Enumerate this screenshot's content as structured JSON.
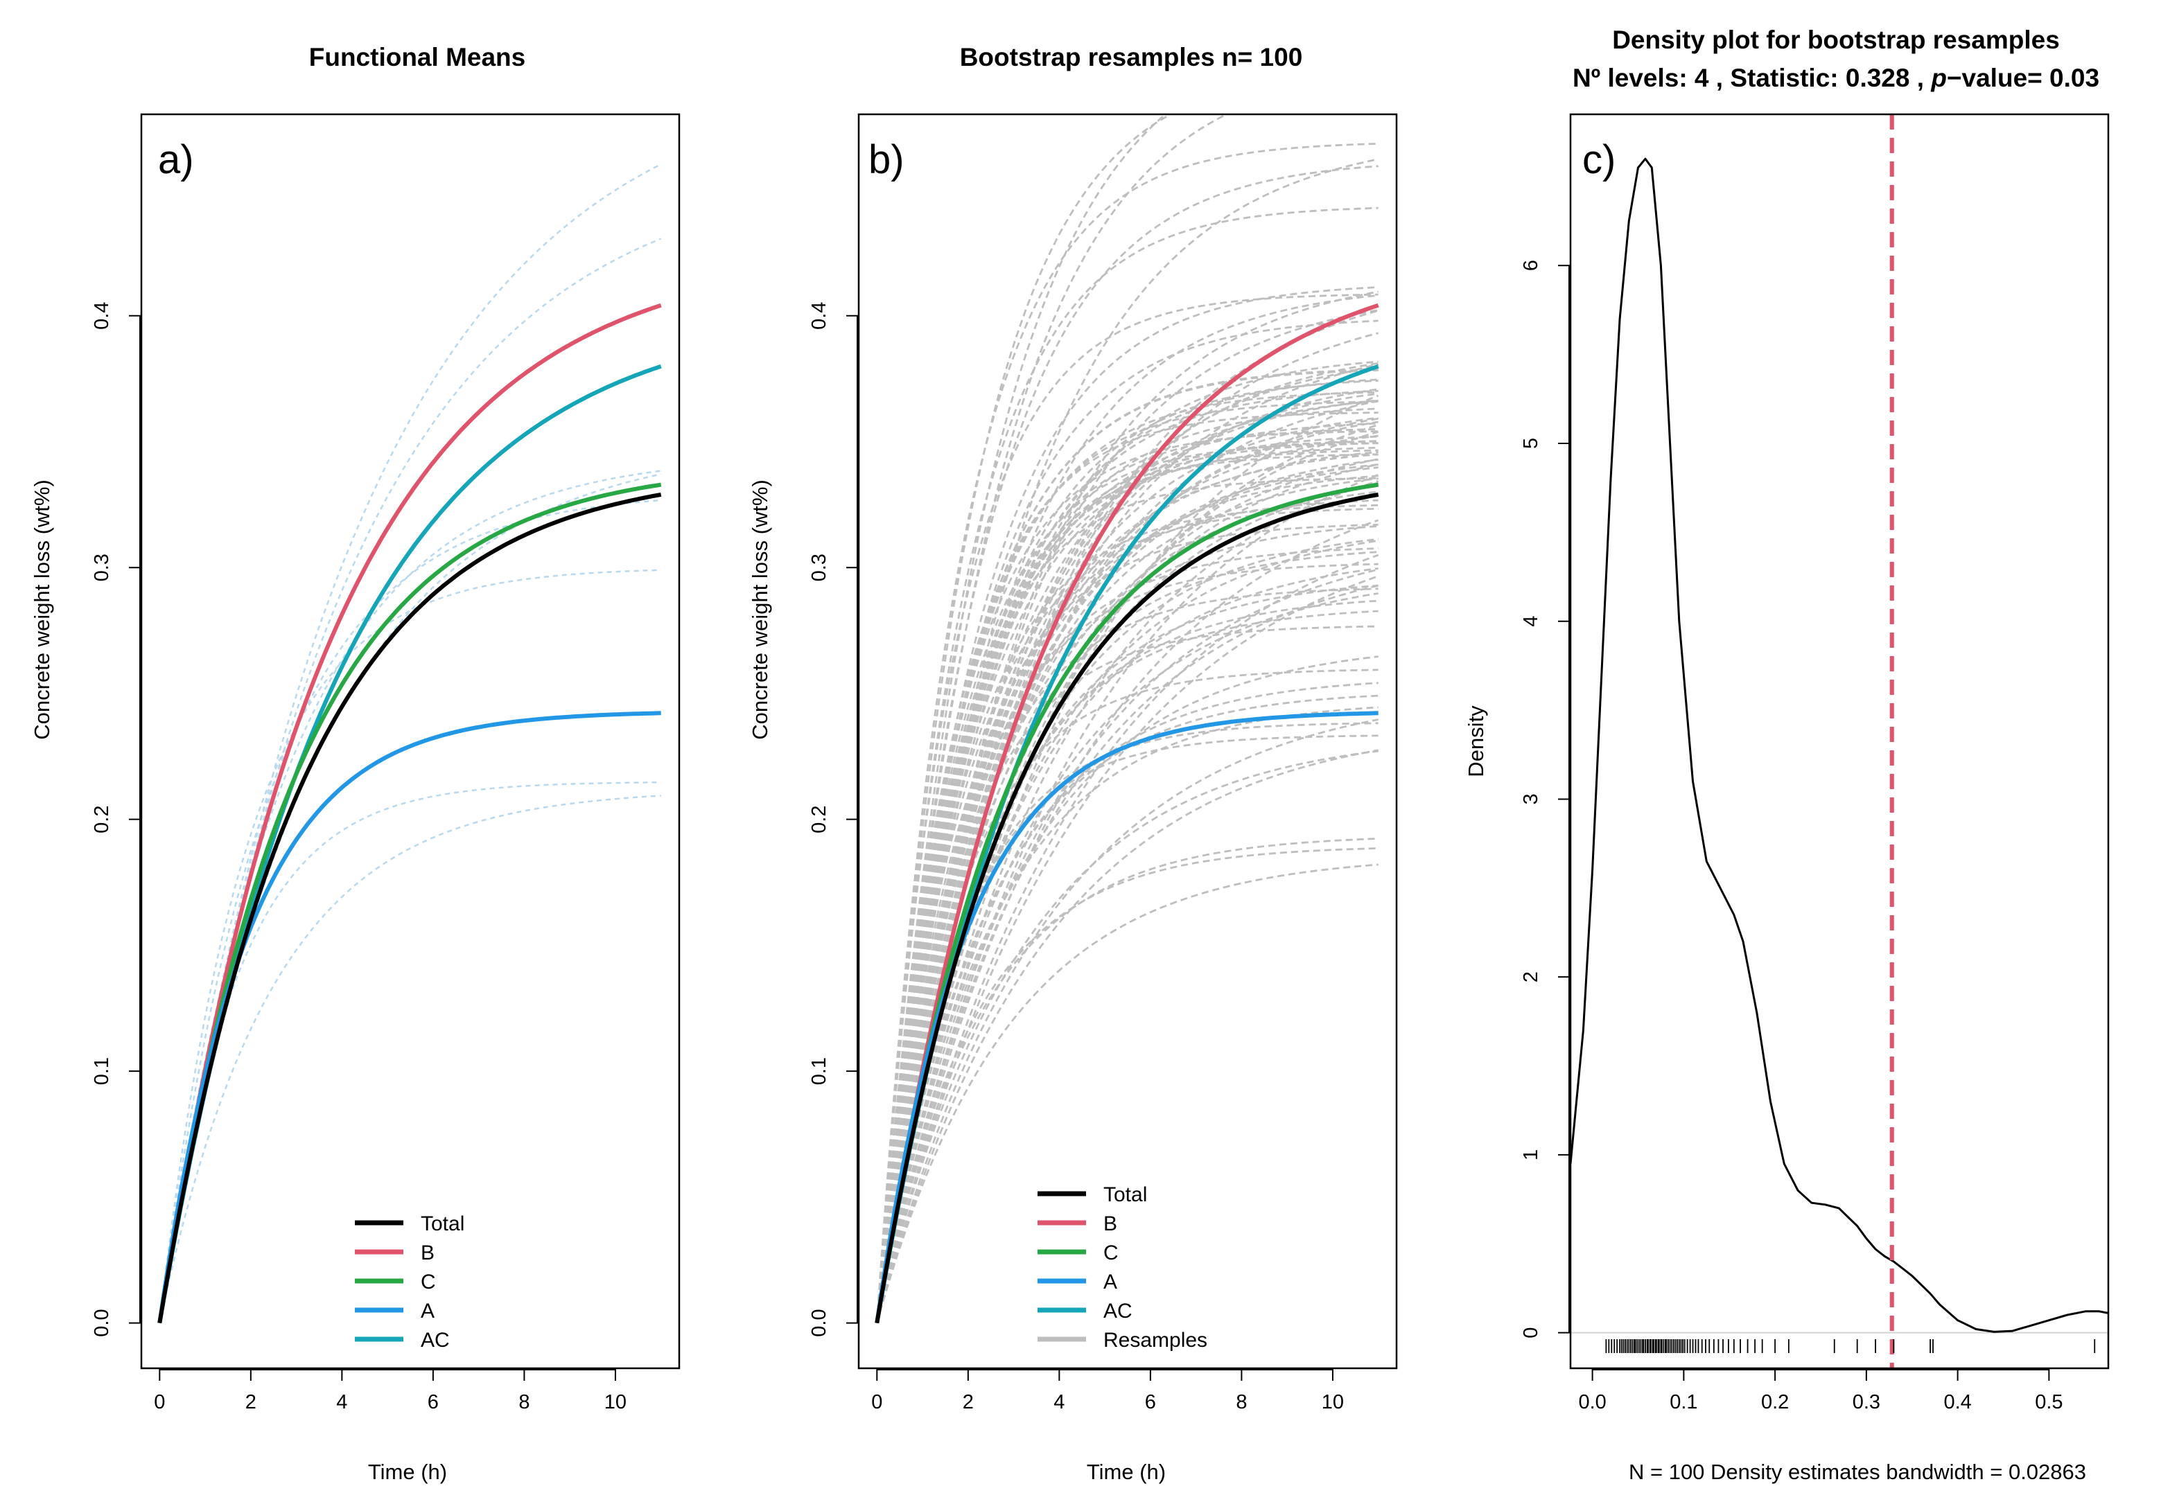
{
  "figure": {
    "colors": {
      "Total": "#000000",
      "B": "#DF536B",
      "C": "#28A745",
      "A": "#2297E6",
      "AC": "#15A5B8",
      "Resamples": "#BEBEBE",
      "light_group": "#B8D8EE",
      "statistic_line": "#DF536B"
    }
  },
  "chart_data": [
    {
      "type": "line",
      "title": "Functional Means",
      "panel_label": "a)",
      "xlabel": "Time (h)",
      "ylabel": "Concrete weight loss (wt%)",
      "xlim": [
        -0.4,
        11.4
      ],
      "ylim": [
        -0.018,
        0.48
      ],
      "xticks": [
        0,
        2,
        4,
        6,
        8,
        10
      ],
      "yticks": [
        0.0,
        0.1,
        0.2,
        0.3,
        0.4
      ],
      "ytick_labels": [
        "0.0",
        "0.1",
        "0.2",
        "0.3",
        "0.4"
      ],
      "x_range": [
        0,
        11
      ],
      "legend_position": "bottom-center",
      "series": [
        {
          "name": "Total",
          "asymptote": 0.339,
          "rate": 0.32
        },
        {
          "name": "B",
          "asymptote": 0.426,
          "rate": 0.27
        },
        {
          "name": "C",
          "asymptote": 0.341,
          "rate": 0.34
        },
        {
          "name": "A",
          "asymptote": 0.243,
          "rate": 0.52
        },
        {
          "name": "AC",
          "asymptote": 0.403,
          "rate": 0.26
        }
      ],
      "individual_curves": [
        {
          "asymptote": 0.5,
          "rate": 0.23
        },
        {
          "asymptote": 0.46,
          "rate": 0.25
        },
        {
          "asymptote": 0.35,
          "rate": 0.3
        },
        {
          "asymptote": 0.345,
          "rate": 0.36
        },
        {
          "asymptote": 0.33,
          "rate": 0.42
        },
        {
          "asymptote": 0.3,
          "rate": 0.52
        },
        {
          "asymptote": 0.215,
          "rate": 0.6
        },
        {
          "asymptote": 0.212,
          "rate": 0.4
        }
      ]
    },
    {
      "type": "line",
      "title": "Bootstrap resamples n= 100",
      "panel_label": "b)",
      "xlabel": "Time (h)",
      "ylabel": "Concrete weight loss (wt%)",
      "xlim": [
        -0.4,
        11.4
      ],
      "ylim": [
        -0.018,
        0.48
      ],
      "xticks": [
        0,
        2,
        4,
        6,
        8,
        10
      ],
      "yticks": [
        0.0,
        0.1,
        0.2,
        0.3,
        0.4
      ],
      "ytick_labels": [
        "0.0",
        "0.1",
        "0.2",
        "0.3",
        "0.4"
      ],
      "x_range": [
        0,
        11
      ],
      "legend_position": "bottom-center",
      "n_resamples": 100,
      "resample_asymptote_range": [
        0.18,
        0.52
      ],
      "resample_rate_range": [
        0.22,
        0.62
      ],
      "series": [
        {
          "name": "Total",
          "asymptote": 0.339,
          "rate": 0.32
        },
        {
          "name": "B",
          "asymptote": 0.426,
          "rate": 0.27
        },
        {
          "name": "C",
          "asymptote": 0.341,
          "rate": 0.34
        },
        {
          "name": "A",
          "asymptote": 0.243,
          "rate": 0.52
        },
        {
          "name": "AC",
          "asymptote": 0.403,
          "rate": 0.26
        },
        {
          "name": "Resamples"
        }
      ]
    },
    {
      "type": "line",
      "title": "Density plot for bootstrap resamples",
      "subtitle_parts": [
        "Nº levels: 4 , Statistic: 0.328 , ",
        "p",
        "−value= 0.03"
      ],
      "panel_label": "c)",
      "xlabel": "N = 100   Density estimates bandwidth = 0.02863",
      "ylabel": "Density",
      "xlim": [
        -0.024,
        0.565
      ],
      "ylim": [
        -0.2,
        6.85
      ],
      "xticks": [
        0.0,
        0.1,
        0.2,
        0.3,
        0.4,
        0.5
      ],
      "xtick_labels": [
        "0.0",
        "0.1",
        "0.2",
        "0.3",
        "0.4",
        "0.5"
      ],
      "yticks": [
        0,
        1,
        2,
        3,
        4,
        5,
        6
      ],
      "ytick_labels": [
        "0",
        "1",
        "2",
        "3",
        "4",
        "5",
        "6"
      ],
      "statistic": 0.328,
      "p_value": 0.03,
      "n": 100,
      "bandwidth": 0.02863,
      "x": [
        -0.024,
        -0.01,
        0.0,
        0.01,
        0.02,
        0.03,
        0.04,
        0.05,
        0.058,
        0.065,
        0.075,
        0.085,
        0.095,
        0.11,
        0.125,
        0.14,
        0.155,
        0.165,
        0.18,
        0.195,
        0.21,
        0.225,
        0.24,
        0.255,
        0.27,
        0.28,
        0.29,
        0.3,
        0.31,
        0.32,
        0.33,
        0.34,
        0.35,
        0.36,
        0.37,
        0.38,
        0.4,
        0.42,
        0.44,
        0.46,
        0.48,
        0.5,
        0.52,
        0.54,
        0.555,
        0.565
      ],
      "density": [
        0.95,
        1.7,
        2.6,
        3.7,
        4.8,
        5.7,
        6.25,
        6.55,
        6.6,
        6.55,
        6.0,
        5.0,
        4.0,
        3.1,
        2.65,
        2.5,
        2.35,
        2.2,
        1.8,
        1.3,
        0.95,
        0.8,
        0.73,
        0.72,
        0.7,
        0.65,
        0.6,
        0.53,
        0.47,
        0.43,
        0.4,
        0.36,
        0.32,
        0.27,
        0.22,
        0.16,
        0.07,
        0.02,
        0.005,
        0.01,
        0.04,
        0.07,
        0.1,
        0.12,
        0.12,
        0.11
      ],
      "rug": [
        0.015,
        0.018,
        0.021,
        0.024,
        0.027,
        0.03,
        0.032,
        0.034,
        0.036,
        0.038,
        0.04,
        0.042,
        0.044,
        0.046,
        0.047,
        0.049,
        0.051,
        0.053,
        0.055,
        0.056,
        0.058,
        0.06,
        0.061,
        0.063,
        0.064,
        0.066,
        0.067,
        0.069,
        0.07,
        0.072,
        0.073,
        0.075,
        0.076,
        0.078,
        0.08,
        0.081,
        0.083,
        0.085,
        0.087,
        0.089,
        0.091,
        0.093,
        0.095,
        0.097,
        0.099,
        0.101,
        0.104,
        0.107,
        0.11,
        0.113,
        0.116,
        0.12,
        0.124,
        0.128,
        0.133,
        0.138,
        0.143,
        0.149,
        0.155,
        0.162,
        0.17,
        0.178,
        0.186,
        0.2,
        0.215,
        0.265,
        0.29,
        0.31,
        0.33,
        0.37,
        0.373,
        0.55
      ]
    }
  ]
}
